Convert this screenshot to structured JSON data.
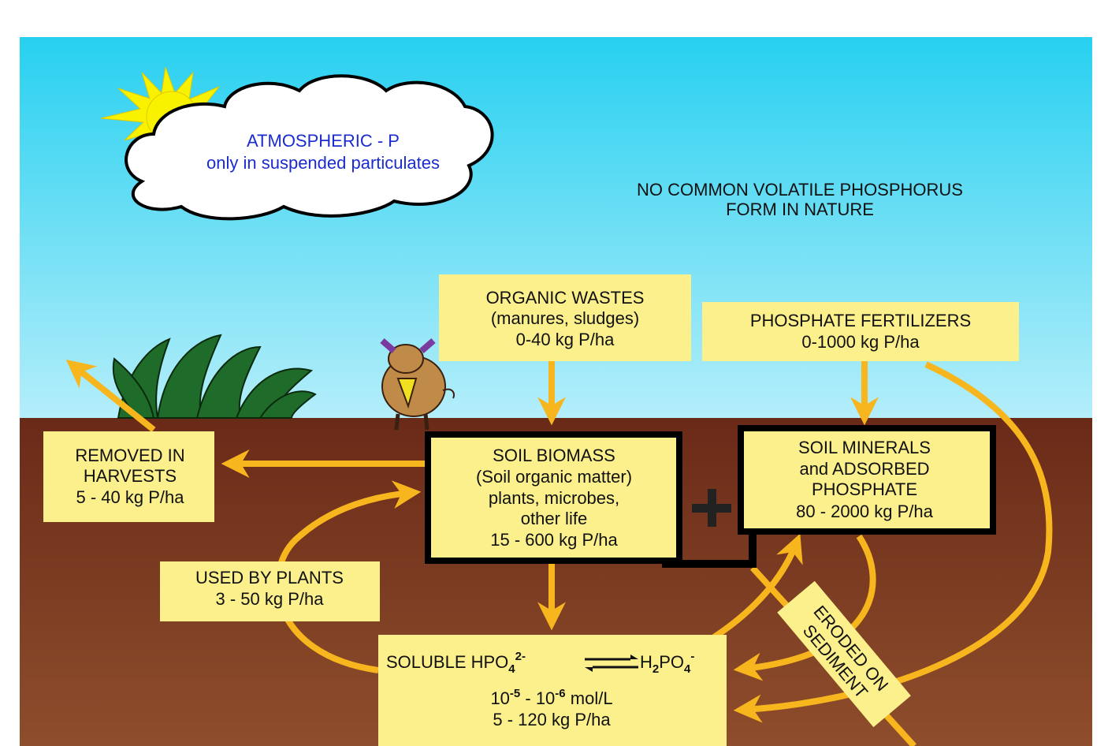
{
  "atmosphere": {
    "lines": [
      "ATMOSPHERIC - P",
      "only in suspended particulates"
    ]
  },
  "note": {
    "lines": [
      "NO COMMON VOLATILE PHOSPHORUS",
      "FORM IN NATURE"
    ]
  },
  "organic_wastes": {
    "lines": [
      "ORGANIC WASTES",
      "(manures, sludges)",
      "0-40 kg P/ha"
    ]
  },
  "phosphate_fertilizers": {
    "lines": [
      "PHOSPHATE FERTILIZERS",
      "0-1000 kg P/ha"
    ]
  },
  "removed_in_harvests": {
    "lines": [
      "REMOVED IN",
      "HARVESTS",
      "5 - 40 kg P/ha"
    ]
  },
  "soil_biomass": {
    "lines": [
      "SOIL BIOMASS",
      "(Soil organic matter)",
      "plants, microbes,",
      "other life",
      "15 - 600 kg P/ha"
    ]
  },
  "soil_minerals": {
    "lines": [
      "SOIL MINERALS",
      "and ADSORBED",
      "PHOSPHATE",
      "80 - 2000 kg P/ha"
    ]
  },
  "used_by_plants": {
    "lines": [
      "USED BY PLANTS",
      "3 - 50 kg P/ha"
    ]
  },
  "soluble": {
    "formula": [
      "SOLUBLE HPO",
      "4",
      "2-",
      "H",
      "2",
      "PO",
      "4",
      "-"
    ],
    "concentration": [
      "10",
      "-5",
      " - 10",
      "-6",
      " mol/L"
    ],
    "amount": "5 - 120 kg P/ha"
  },
  "eroded": {
    "lines": [
      "ERODED ON",
      "SEDIMENT"
    ]
  }
}
